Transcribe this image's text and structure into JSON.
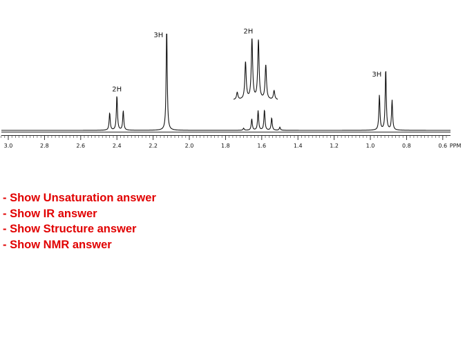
{
  "chart_data": {
    "type": "line",
    "title": "",
    "xlabel": "PPM",
    "ylabel": "",
    "xlim": [
      3.05,
      0.55
    ],
    "x_reversed": true,
    "ticks": [
      "3.0",
      "2.8",
      "2.6",
      "2.4",
      "2.2",
      "2.0",
      "1.8",
      "1.6",
      "1.4",
      "1.2",
      "1.0",
      "0.8",
      "0.6"
    ],
    "tick_values": [
      3.0,
      2.8,
      2.6,
      2.4,
      2.2,
      2.0,
      1.8,
      1.6,
      1.4,
      1.2,
      1.0,
      0.8,
      0.6
    ],
    "axis_unit_label": "PPM",
    "series": [
      {
        "peaks": [
          {
            "ppm": 2.44,
            "height": 0.17
          },
          {
            "ppm": 2.4,
            "height": 0.34
          },
          {
            "ppm": 2.365,
            "height": 0.19
          },
          {
            "ppm": 2.125,
            "height": 1.0
          },
          {
            "ppm": 1.7,
            "height": 0.02
          },
          {
            "ppm": 1.655,
            "height": 0.11
          },
          {
            "ppm": 1.62,
            "height": 0.19
          },
          {
            "ppm": 1.585,
            "height": 0.2
          },
          {
            "ppm": 1.545,
            "height": 0.12
          },
          {
            "ppm": 1.5,
            "height": 0.03
          },
          {
            "ppm": 0.95,
            "height": 0.34
          },
          {
            "ppm": 0.915,
            "height": 0.6
          },
          {
            "ppm": 0.88,
            "height": 0.29
          }
        ]
      }
    ],
    "inset": {
      "ppm_range": [
        1.72,
        1.48
      ],
      "peaks": [
        {
          "ppm": 1.7,
          "height": 0.12
        },
        {
          "ppm": 1.655,
          "height": 0.62
        },
        {
          "ppm": 1.62,
          "height": 1.0
        },
        {
          "ppm": 1.585,
          "height": 0.98
        },
        {
          "ppm": 1.545,
          "height": 0.57
        },
        {
          "ppm": 1.5,
          "height": 0.15
        }
      ]
    },
    "annotations": [
      {
        "text": "2H",
        "ppm": 2.4,
        "target": "main"
      },
      {
        "text": "3H",
        "ppm": 2.14,
        "target": "main"
      },
      {
        "text": "2H",
        "ppm": 1.64,
        "target": "inset"
      },
      {
        "text": "3H",
        "ppm": 0.92,
        "target": "main"
      }
    ]
  },
  "links": [
    "- Show Unsaturation answer",
    "- Show IR answer",
    "- Show Structure answer",
    "- Show NMR answer"
  ]
}
